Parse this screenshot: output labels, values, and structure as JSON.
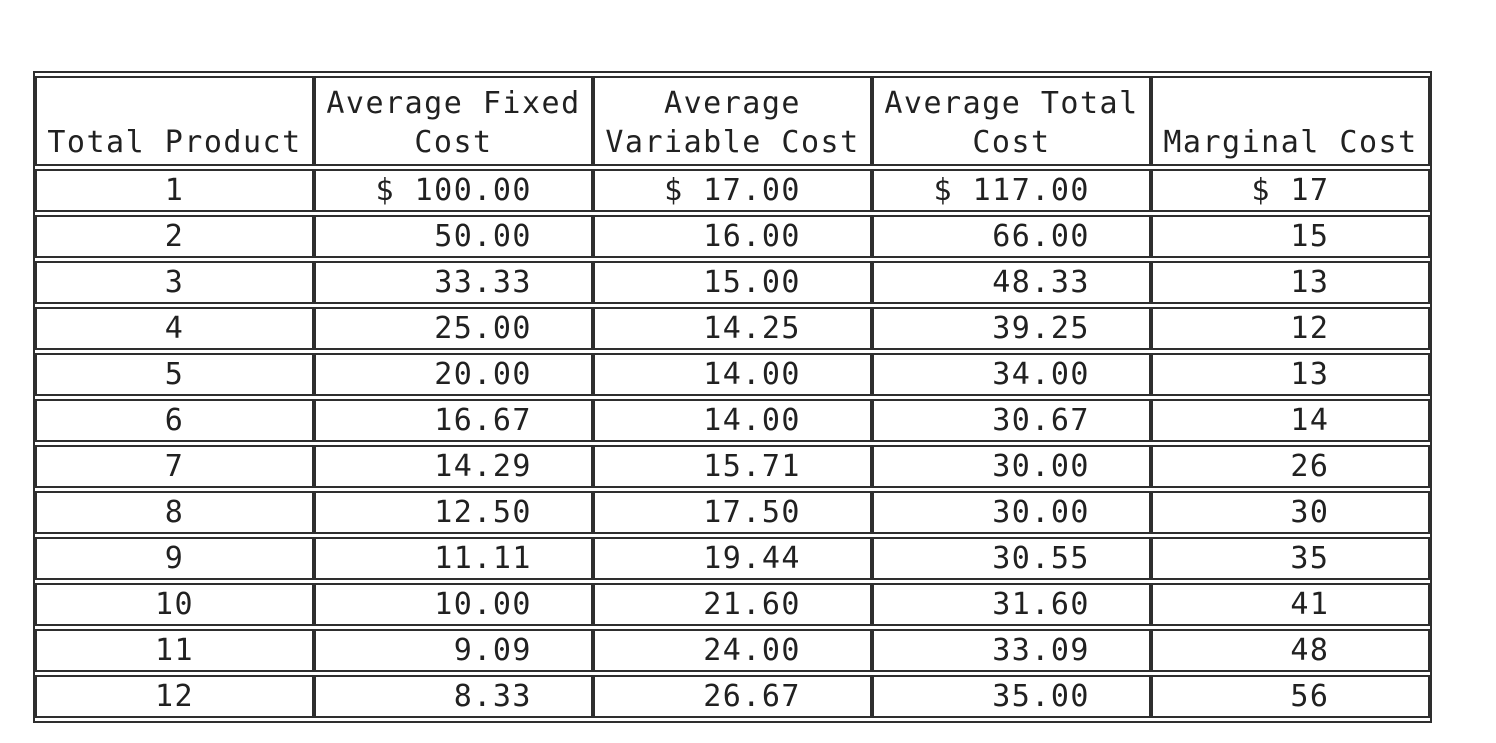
{
  "page": {
    "background": "#ffffff",
    "text_color": "#212121",
    "border_color": "#2e2e2e"
  },
  "chart_data": {
    "type": "table",
    "columns": [
      "Total Product",
      "Average Fixed\nCost",
      "Average\nVariable Cost",
      "Average Total\nCost",
      "Marginal Cost"
    ],
    "rows": [
      [
        "1",
        "$ 100.00",
        "$ 17.00",
        "$ 117.00",
        "$ 17"
      ],
      [
        "2",
        "50.00",
        "16.00",
        "66.00",
        "15"
      ],
      [
        "3",
        "33.33",
        "15.00",
        "48.33",
        "13"
      ],
      [
        "4",
        "25.00",
        "14.25",
        "39.25",
        "12"
      ],
      [
        "5",
        "20.00",
        "14.00",
        "34.00",
        "13"
      ],
      [
        "6",
        "16.67",
        "14.00",
        "30.67",
        "14"
      ],
      [
        "7",
        "14.29",
        "15.71",
        "30.00",
        "26"
      ],
      [
        "8",
        "12.50",
        "17.50",
        "30.00",
        "30"
      ],
      [
        "9",
        "11.11",
        "19.44",
        "30.55",
        "35"
      ],
      [
        "10",
        "10.00",
        "21.60",
        "31.60",
        "41"
      ],
      [
        "11",
        "9.09",
        "24.00",
        "33.09",
        "48"
      ],
      [
        "12",
        "8.33",
        "26.67",
        "35.00",
        "56"
      ]
    ]
  }
}
